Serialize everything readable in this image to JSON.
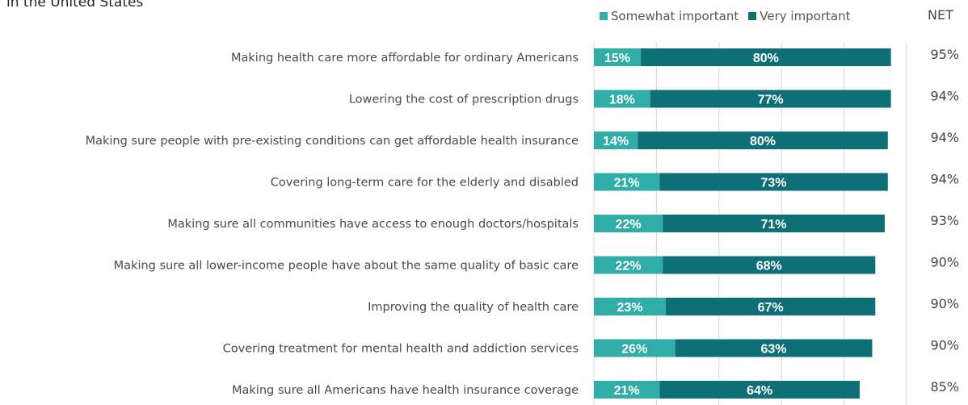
{
  "header": {
    "title": "in the United States",
    "net_label": "NET"
  },
  "legend": [
    {
      "label": "Somewhat important",
      "color": "#2fada6"
    },
    {
      "label": "Very important",
      "color": "#0e6f77"
    }
  ],
  "chart_data": {
    "type": "bar",
    "orientation": "horizontal",
    "stacked": true,
    "title": "in the United States",
    "categories": [
      "Making health care more affordable for ordinary Americans",
      "Lowering the cost of prescription drugs",
      "Making sure people with pre-existing conditions can get affordable health insurance",
      "Covering long-term care for the elderly and disabled",
      "Making sure all communities have access to enough doctors/hospitals",
      "Making sure all lower-income people have about the same quality of basic care",
      "Improving the quality of health care",
      "Covering treatment for mental health and addiction services",
      "Making sure all Americans have health insurance coverage"
    ],
    "series": [
      {
        "name": "Somewhat important",
        "color": "#2fada6",
        "values": [
          15,
          18,
          14,
          21,
          22,
          22,
          23,
          26,
          21
        ]
      },
      {
        "name": "Very important",
        "color": "#0e6f77",
        "values": [
          80,
          77,
          80,
          73,
          71,
          68,
          67,
          63,
          64
        ]
      }
    ],
    "net": {
      "name": "NET",
      "values": [
        95,
        94,
        94,
        94,
        93,
        90,
        90,
        90,
        85
      ]
    },
    "value_suffix": "%",
    "xlim": [
      0,
      100
    ],
    "grid": true,
    "legend_position": "top"
  }
}
